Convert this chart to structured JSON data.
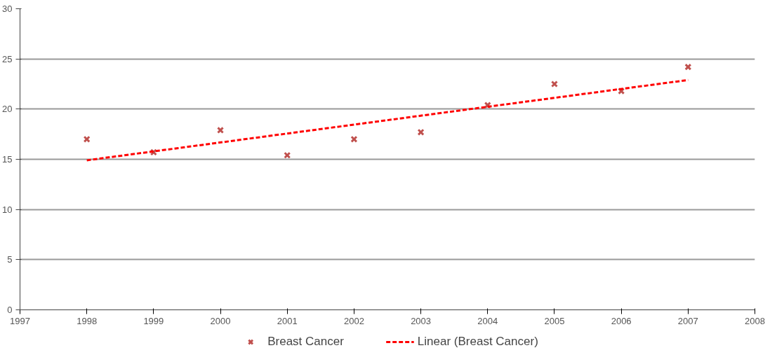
{
  "chart_data": {
    "type": "scatter",
    "xlim": [
      1997,
      2008
    ],
    "xticks": [
      1997,
      1998,
      1999,
      2000,
      2001,
      2002,
      2003,
      2004,
      2005,
      2006,
      2007,
      2008
    ],
    "ylim": [
      0,
      30
    ],
    "yticks": [
      0,
      5,
      10,
      15,
      20,
      25,
      30
    ],
    "grid": "y",
    "legend": "bottom",
    "series": [
      {
        "name": "Breast Cancer",
        "marker": "cross",
        "color": "#c0504d",
        "x": [
          1998,
          1999,
          2000,
          2001,
          2002,
          2003,
          2004,
          2005,
          2006,
          2007
        ],
        "values": [
          17.0,
          15.7,
          17.9,
          15.4,
          17.0,
          17.7,
          20.4,
          22.5,
          21.8,
          24.2
        ]
      },
      {
        "name": "Linear (Breast Cancer)",
        "type": "line",
        "line_style": "dashed",
        "color": "#ff0000",
        "x": [
          1998,
          2007
        ],
        "values": [
          14.9,
          22.9
        ]
      }
    ]
  }
}
